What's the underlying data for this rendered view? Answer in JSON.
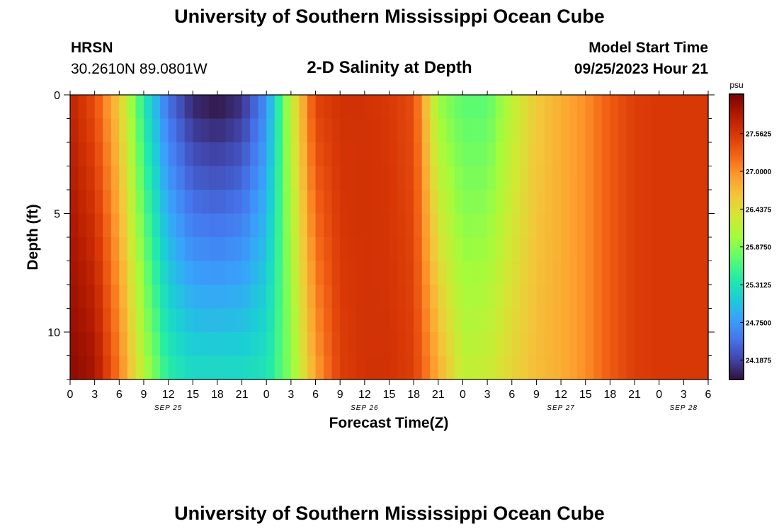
{
  "page": {
    "title": "University of Southern Mississippi Ocean Cube",
    "station": "HRSN",
    "coords": "30.2610N  89.0801W",
    "subtitle": "2-D Salinity at Depth",
    "start_label": "Model Start Time",
    "start_value": "09/25/2023 Hour 21",
    "footer_title": "University of Southern Mississippi Ocean Cube"
  },
  "colors": {
    "background": "#ffffff",
    "axis": "#000000",
    "colormap": [
      "#30123b",
      "#4145ab",
      "#4675ed",
      "#39a2fc",
      "#1bcfd4",
      "#24eca6",
      "#61fc6c",
      "#a4fc3b",
      "#d1e834",
      "#f3c63a",
      "#fe9b2d",
      "#f36315",
      "#d93806",
      "#b11901",
      "#7a0402"
    ]
  },
  "chart_data": {
    "type": "heatmap",
    "title": "2-D Salinity at Depth",
    "xlabel": "Forecast Time(Z)",
    "ylabel": "Depth (ft)",
    "x_range_hours": [
      0,
      78
    ],
    "ylim": [
      0,
      12
    ],
    "y_ticks": [
      0,
      5,
      10
    ],
    "x_tick_labels": [
      "0",
      "3",
      "6",
      "9",
      "12",
      "15",
      "18",
      "21",
      "0",
      "3",
      "6",
      "9",
      "12",
      "15",
      "18",
      "21",
      "0",
      "3",
      "6",
      "9",
      "12",
      "15",
      "18",
      "21",
      "0",
      "3",
      "6"
    ],
    "date_labels": [
      {
        "text": "SEP 25",
        "hour": 12
      },
      {
        "text": "SEP 26",
        "hour": 36
      },
      {
        "text": "SEP 27",
        "hour": 60
      },
      {
        "text": "SEP 28",
        "hour": 75
      }
    ],
    "colorbar": {
      "unit": "psu",
      "range": [
        23.9,
        28.15
      ],
      "ticks": [
        "27.5625",
        "27.0000",
        "26.4375",
        "25.8750",
        "25.3125",
        "24.7500",
        "24.1875"
      ]
    },
    "depth_levels_ft": [
      0.5,
      1.5,
      2.5,
      3.5,
      4.5,
      5.5,
      6.5,
      7.5,
      8.5,
      9.5,
      10.5,
      11.5
    ],
    "profile_hours": [
      0,
      3,
      6,
      9,
      12,
      15,
      18,
      21,
      24,
      27,
      30,
      33,
      36,
      39,
      42,
      45,
      48,
      51,
      54,
      57,
      60,
      63,
      66,
      69,
      72,
      75,
      78
    ],
    "salinity_surface_psu": [
      27.75,
      27.4,
      26.6,
      25.4,
      24.5,
      24.05,
      23.95,
      24.1,
      24.7,
      26.2,
      27.45,
      27.6,
      27.6,
      27.55,
      27.4,
      26.0,
      25.7,
      25.7,
      26.2,
      26.6,
      26.8,
      27.0,
      27.3,
      27.5,
      27.55,
      27.55,
      27.55
    ],
    "salinity_bottom_psu": [
      28.05,
      27.9,
      27.1,
      26.1,
      25.4,
      25.2,
      25.2,
      25.2,
      25.3,
      25.9,
      26.9,
      27.5,
      27.6,
      27.6,
      27.5,
      26.8,
      26.2,
      26.25,
      26.5,
      26.7,
      26.8,
      27.0,
      27.3,
      27.5,
      27.55,
      27.55,
      27.55
    ]
  }
}
